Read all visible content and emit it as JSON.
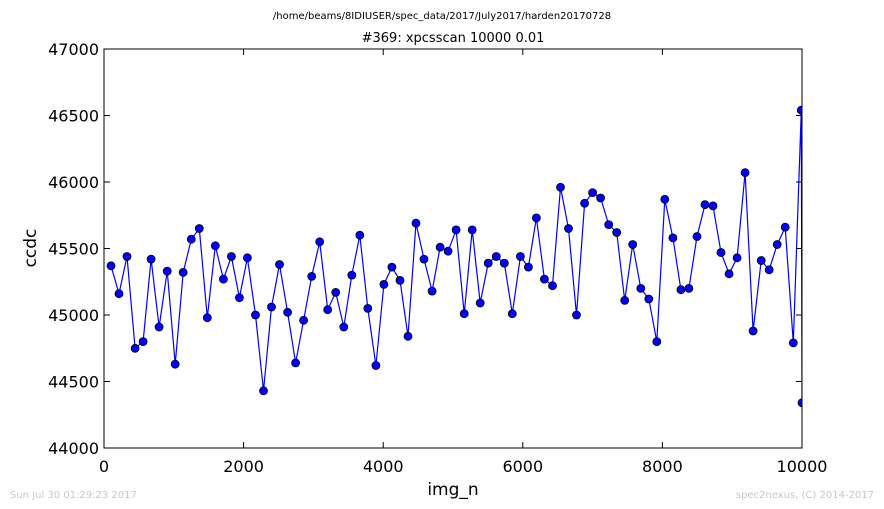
{
  "suptitle": "/home/beams/8IDIUSER/spec_data/2017/July2017/harden20170728",
  "footer_left": "Sun Jul 30 01:29:23 2017",
  "footer_right": "spec2nexus, (C) 2014-2017",
  "colors": {
    "line": "#0000ff",
    "marker_fill": "#0000ff",
    "marker_edge": "#000000",
    "axes": "#000000"
  },
  "chart_data": {
    "type": "line",
    "title": "#369: xpcsscan 10000 0.01",
    "xlabel": "img_n",
    "ylabel": "ccdc",
    "xlim": [
      0,
      10000
    ],
    "ylim": [
      44000,
      47000
    ],
    "xticks": [
      0,
      2000,
      4000,
      6000,
      8000,
      10000
    ],
    "yticks": [
      44000,
      44500,
      45000,
      45500,
      46000,
      46500,
      47000
    ],
    "xtick_labels": [
      "0",
      "2000",
      "4000",
      "6000",
      "8000",
      "10000"
    ],
    "ytick_labels": [
      "44000",
      "44500",
      "45000",
      "45500",
      "46000",
      "46500",
      "47000"
    ],
    "grid": false,
    "legend": "none",
    "series": [
      {
        "x": [
          100,
          215,
          330,
          445,
          560,
          675,
          790,
          905,
          1020,
          1135,
          1250,
          1365,
          1480,
          1595,
          1710,
          1825,
          1940,
          2055,
          2170,
          2285,
          2400,
          2515,
          2630,
          2745,
          2860,
          2975,
          3090,
          3205,
          3320,
          3435,
          3550,
          3665,
          3780,
          3895,
          4010,
          4125,
          4240,
          4355,
          4470,
          4585,
          4700,
          4815,
          4930,
          5045,
          5160,
          5275,
          5390,
          5505,
          5620,
          5735,
          5850,
          5965,
          6080,
          6195,
          6310,
          6425,
          6540,
          6655,
          6770,
          6885,
          7000,
          7115,
          7230,
          7345,
          7460,
          7575,
          7690,
          7805,
          7920,
          8035,
          8150,
          8265,
          8380,
          8495,
          8610,
          8725,
          8840,
          8955,
          9070,
          9185,
          9300,
          9415,
          9530,
          9645,
          9760,
          9875,
          9990
        ],
        "y": [
          45370,
          45160,
          45440,
          44750,
          44800,
          45420,
          44910,
          45330,
          44630,
          45320,
          45570,
          45650,
          44980,
          45520,
          45270,
          45440,
          45130,
          45430,
          45000,
          44430,
          45060,
          45380,
          45020,
          44640,
          44960,
          45290,
          45550,
          45040,
          45170,
          44910,
          45300,
          45600,
          45050,
          44620,
          45230,
          45360,
          45260,
          44840,
          45690,
          45420,
          45180,
          45510,
          45480,
          45640,
          45010,
          45640,
          45090,
          45390,
          45440,
          45390,
          45010,
          45440,
          45360,
          45730,
          45270,
          45220,
          45960,
          45650,
          45000,
          45840,
          45920,
          45880,
          45680,
          45620,
          45110,
          45530,
          45200,
          45120,
          44800,
          45870,
          45580,
          45190,
          45200,
          45590,
          45830,
          45820,
          45470,
          45310,
          45430,
          46070,
          44880,
          45410,
          45340,
          45530,
          45660,
          44790,
          46540
        ]
      }
    ],
    "last_point": {
      "x": 10000,
      "y": 44340
    }
  }
}
